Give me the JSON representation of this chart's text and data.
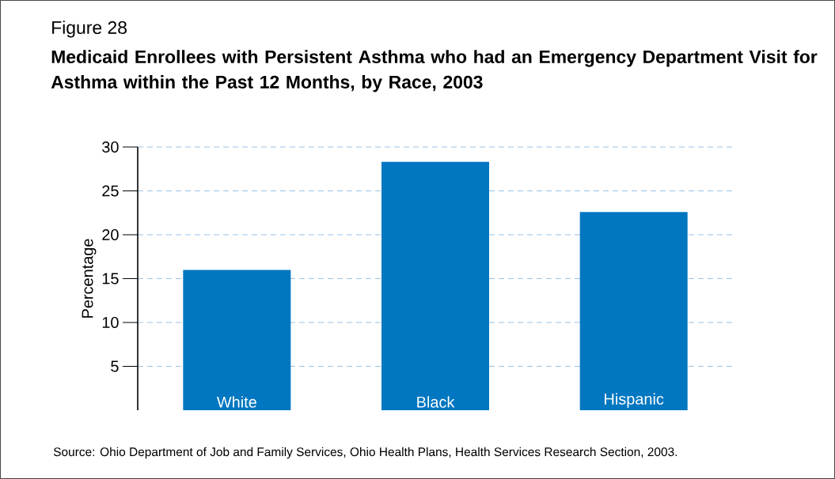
{
  "chart_data": {
    "type": "bar",
    "title": "Medicaid Enrollees with Persistent Asthma who had an Emergency Department Visit for Asthma within the Past 12 Months, by Race, 2003",
    "ylabel": "Percentage",
    "categories": [
      "White",
      "Black",
      "Hispanic"
    ],
    "values": [
      16.0,
      28.3,
      22.6
    ],
    "color": "#0077c0",
    "ylim": [
      0,
      30
    ],
    "yticks": [
      5,
      10,
      15,
      20,
      25,
      30
    ],
    "grid": "y",
    "annotations": [
      "Figure 28",
      "Source:  Ohio Department of Job and Family Services, Ohio Health Plans, Health Services Research Section, 2003."
    ]
  }
}
